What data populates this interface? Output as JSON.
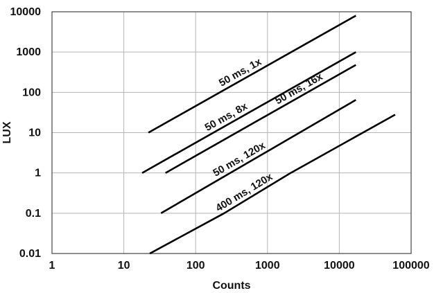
{
  "chart_data": {
    "type": "line",
    "xscale": "log",
    "yscale": "log",
    "xlim": [
      1,
      100000
    ],
    "ylim": [
      0.01,
      10000
    ],
    "xlabel": "Counts",
    "ylabel": "LUX",
    "grid": true,
    "x_tick_labels": [
      "1",
      "10",
      "100",
      "1000",
      "10000",
      "100000"
    ],
    "y_tick_labels": [
      "0.01",
      "0.1",
      "1",
      "10",
      "100",
      "1000",
      "10000"
    ],
    "series": [
      {
        "name": "50 ms, 1x",
        "x": [
          22,
          17000
        ],
        "y": [
          10,
          8000
        ]
      },
      {
        "name": "50 ms, 8x",
        "x": [
          18,
          17000
        ],
        "y": [
          1,
          1000
        ]
      },
      {
        "name": "50 ms, 16x",
        "x": [
          38,
          17000
        ],
        "y": [
          1,
          480
        ]
      },
      {
        "name": "50 ms, 120x",
        "x": [
          33,
          17000
        ],
        "y": [
          0.1,
          65
        ]
      },
      {
        "name": "400 ms, 120x",
        "x": [
          23,
          250,
          2100,
          60000
        ],
        "y": [
          0.01,
          0.1,
          1,
          28
        ]
      }
    ]
  }
}
